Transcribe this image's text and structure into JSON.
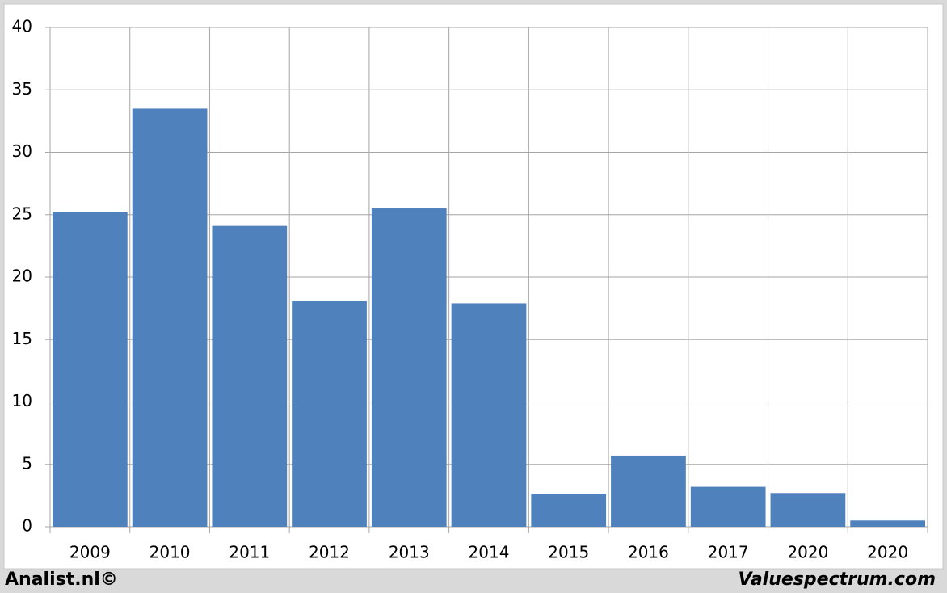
{
  "chart_data": {
    "type": "bar",
    "categories": [
      "2009",
      "2010",
      "2011",
      "2012",
      "2013",
      "2014",
      "2015",
      "2016",
      "2017",
      "2020",
      "2020"
    ],
    "values": [
      25.2,
      33.5,
      24.1,
      18.1,
      25.5,
      17.9,
      2.6,
      5.7,
      3.2,
      2.7,
      0.5
    ],
    "color": "#4f81bd",
    "ylim": [
      0,
      40
    ],
    "yticks": [
      0,
      5,
      10,
      15,
      20,
      25,
      30,
      35,
      40
    ],
    "grid": true
  },
  "footer": {
    "left": "Analist.nl©",
    "right": "Valuespectrum.com"
  }
}
